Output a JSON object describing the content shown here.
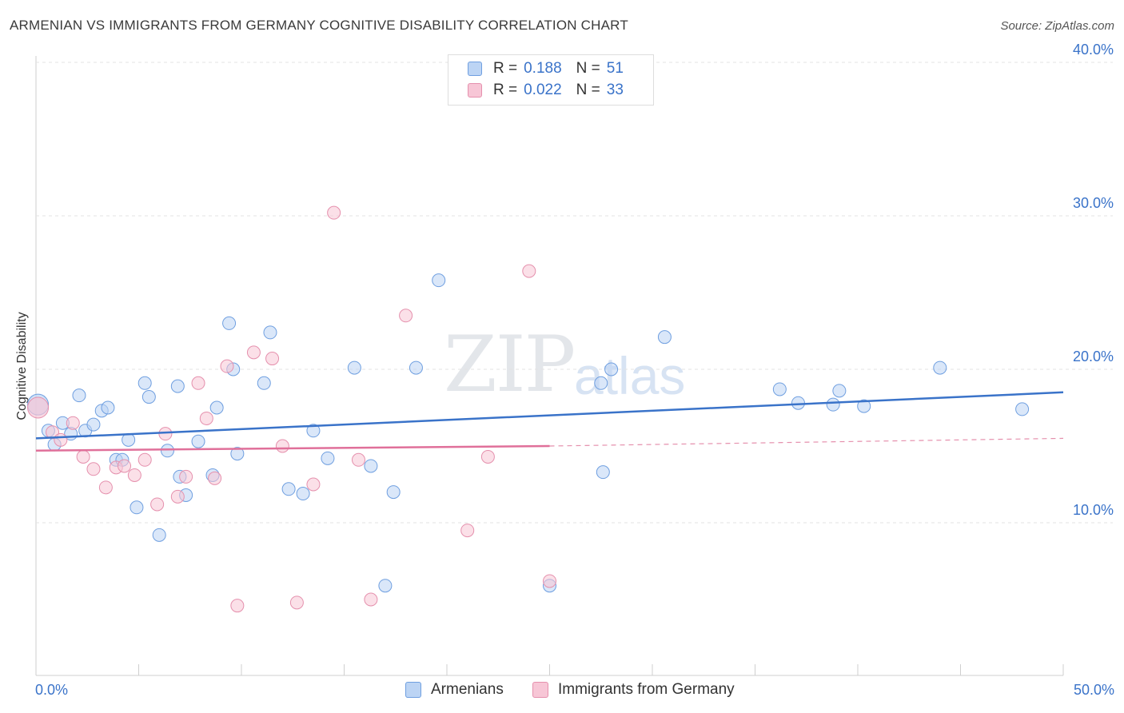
{
  "chart_data": {
    "type": "scatter",
    "title": "ARMENIAN VS IMMIGRANTS FROM GERMANY COGNITIVE DISABILITY CORRELATION CHART",
    "source": "Source: ZipAtlas.com",
    "ylabel": "Cognitive Disability",
    "xlim": [
      0,
      50
    ],
    "ylim": [
      0,
      42
    ],
    "x_tick_labels": [
      "0.0%",
      "50.0%"
    ],
    "y_ticks": [
      10,
      20,
      30,
      40
    ],
    "y_tick_labels": [
      "10.0%",
      "20.0%",
      "30.0%",
      "40.0%"
    ],
    "legend": {
      "rows": [
        {
          "r_label": "R =",
          "r_value": "0.188",
          "n_label": "N =",
          "n_value": "51"
        },
        {
          "r_label": "R =",
          "r_value": "0.022",
          "n_label": "N =",
          "n_value": "33"
        }
      ]
    },
    "watermark": {
      "zip": "ZIP",
      "atlas": "atlas"
    },
    "series": [
      {
        "name": "Armenians",
        "color": "#6f9fe0",
        "fill": "#bcd4f4",
        "trend": {
          "x0": 0,
          "y0": 15.5,
          "x1": 50,
          "y1": 18.5
        },
        "points": [
          [
            0.1,
            17.7
          ],
          [
            0.6,
            16.0
          ],
          [
            0.9,
            15.1
          ],
          [
            1.3,
            16.5
          ],
          [
            1.7,
            15.8
          ],
          [
            2.1,
            18.3
          ],
          [
            2.4,
            16.0
          ],
          [
            2.8,
            16.4
          ],
          [
            3.2,
            17.3
          ],
          [
            3.5,
            17.5
          ],
          [
            3.9,
            14.1
          ],
          [
            4.2,
            14.1
          ],
          [
            4.5,
            15.4
          ],
          [
            4.9,
            11.0
          ],
          [
            5.3,
            19.1
          ],
          [
            5.5,
            18.2
          ],
          [
            6.0,
            9.2
          ],
          [
            6.4,
            14.7
          ],
          [
            6.9,
            18.9
          ],
          [
            7.0,
            13.0
          ],
          [
            7.3,
            11.8
          ],
          [
            7.9,
            15.3
          ],
          [
            8.6,
            13.1
          ],
          [
            8.8,
            17.5
          ],
          [
            9.4,
            23.0
          ],
          [
            9.6,
            20.0
          ],
          [
            9.8,
            14.5
          ],
          [
            11.1,
            19.1
          ],
          [
            11.4,
            22.4
          ],
          [
            12.3,
            12.2
          ],
          [
            13.0,
            11.9
          ],
          [
            13.5,
            16.0
          ],
          [
            14.2,
            14.2
          ],
          [
            15.5,
            20.1
          ],
          [
            16.3,
            13.7
          ],
          [
            17.0,
            5.9
          ],
          [
            17.4,
            12.0
          ],
          [
            18.5,
            20.1
          ],
          [
            19.6,
            25.8
          ],
          [
            25.0,
            5.9
          ],
          [
            27.5,
            19.1
          ],
          [
            27.6,
            13.3
          ],
          [
            28.0,
            20.0
          ],
          [
            30.6,
            22.1
          ],
          [
            36.2,
            18.7
          ],
          [
            37.1,
            17.8
          ],
          [
            38.8,
            17.7
          ],
          [
            39.1,
            18.6
          ],
          [
            40.3,
            17.6
          ],
          [
            44.0,
            20.1
          ],
          [
            48.0,
            17.4
          ]
        ]
      },
      {
        "name": "Immigrants from Germany",
        "color": "#e590ad",
        "fill": "#f7c6d6",
        "trend": {
          "x0": 0,
          "y0": 14.7,
          "x1": 25,
          "y1": 15.0,
          "dash_x1": 50,
          "dash_y1": 15.5
        },
        "points": [
          [
            0.1,
            17.5
          ],
          [
            0.8,
            15.9
          ],
          [
            1.2,
            15.4
          ],
          [
            1.8,
            16.5
          ],
          [
            2.3,
            14.3
          ],
          [
            2.8,
            13.5
          ],
          [
            3.4,
            12.3
          ],
          [
            3.9,
            13.6
          ],
          [
            4.3,
            13.7
          ],
          [
            4.8,
            13.1
          ],
          [
            5.3,
            14.1
          ],
          [
            5.9,
            11.2
          ],
          [
            6.3,
            15.8
          ],
          [
            6.9,
            11.7
          ],
          [
            7.3,
            13.0
          ],
          [
            7.9,
            19.1
          ],
          [
            8.3,
            16.8
          ],
          [
            8.7,
            12.9
          ],
          [
            9.3,
            20.2
          ],
          [
            9.8,
            4.6
          ],
          [
            10.6,
            21.1
          ],
          [
            11.5,
            20.7
          ],
          [
            12.0,
            15.0
          ],
          [
            12.7,
            4.8
          ],
          [
            13.5,
            12.5
          ],
          [
            14.5,
            30.2
          ],
          [
            15.7,
            14.1
          ],
          [
            16.3,
            5.0
          ],
          [
            18.0,
            23.5
          ],
          [
            21.0,
            9.5
          ],
          [
            22.0,
            14.3
          ],
          [
            24.0,
            26.4
          ],
          [
            25.0,
            6.2
          ]
        ]
      }
    ]
  }
}
